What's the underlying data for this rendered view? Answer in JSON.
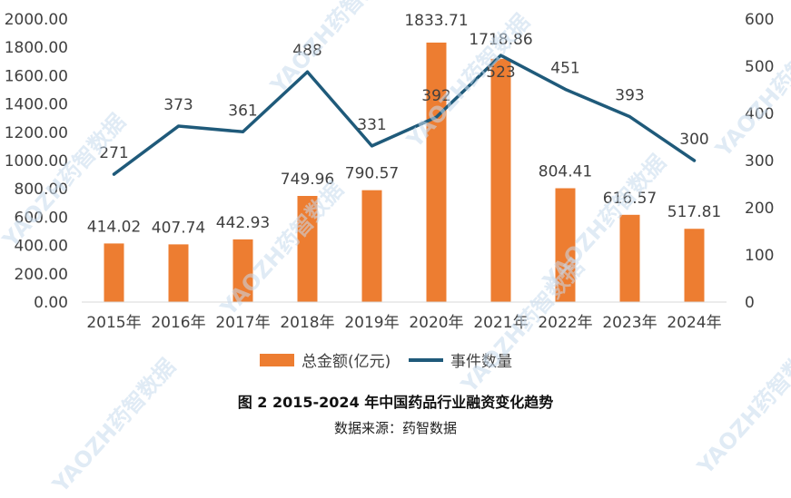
{
  "chart_data": {
    "type": "bar+line",
    "categories": [
      "2015年",
      "2016年",
      "2017年",
      "2018年",
      "2019年",
      "2020年",
      "2021年",
      "2022年",
      "2023年",
      "2024年"
    ],
    "series": [
      {
        "name": "总金额(亿元)",
        "type": "bar",
        "axis": "left",
        "values": [
          414.02,
          407.74,
          442.93,
          749.96,
          790.57,
          1833.71,
          1718.86,
          804.41,
          616.57,
          517.81
        ],
        "labels": [
          "414.02",
          "407.74",
          "442.93",
          "749.96",
          "790.57",
          "1833.71",
          "1718.86",
          "804.41",
          "616.57",
          "517.81"
        ],
        "color": "#ED7D31"
      },
      {
        "name": "事件数量",
        "type": "line",
        "axis": "right",
        "values": [
          271,
          373,
          361,
          488,
          331,
          392,
          523,
          451,
          393,
          300
        ],
        "labels": [
          "271",
          "373",
          "361",
          "488",
          "331",
          "392",
          "523",
          "451",
          "393",
          "300"
        ],
        "color": "#1F5A7A"
      }
    ],
    "y_left": {
      "min": 0,
      "max": 2000,
      "step": 200,
      "ticks": [
        "0.00",
        "200.00",
        "400.00",
        "600.00",
        "800.00",
        "1000.00",
        "1200.00",
        "1400.00",
        "1600.00",
        "1800.00",
        "2000.00"
      ]
    },
    "y_right": {
      "min": 0,
      "max": 600,
      "step": 100,
      "ticks": [
        "0",
        "100",
        "200",
        "300",
        "400",
        "500",
        "600"
      ]
    },
    "grid": false,
    "legend_position": "bottom"
  },
  "caption": {
    "title": "图 2  2015-2024 年中国药品行业融资变化趋势",
    "source": "数据来源：药智数据"
  },
  "watermark": {
    "text": "YAOZH药智数据"
  }
}
